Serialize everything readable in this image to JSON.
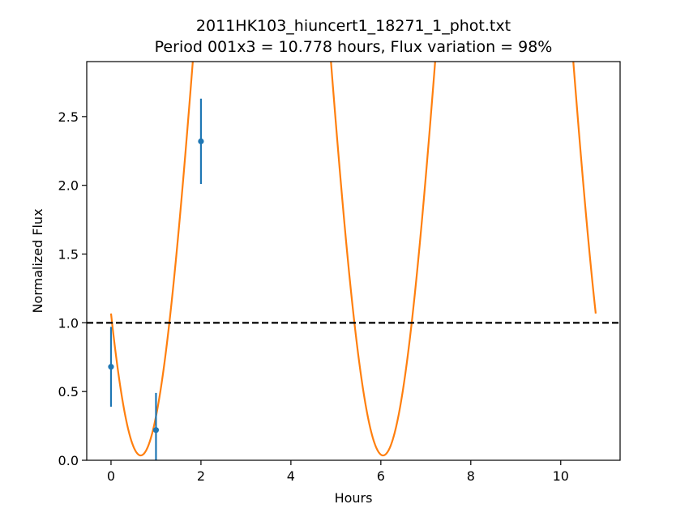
{
  "chart_data": {
    "type": "line",
    "title": "2011HK103_hiuncert1_18271_1_phot.txt",
    "subtitle": "Period 001x3 = 10.778 hours, Flux variation = 98%",
    "xlabel": "Hours",
    "ylabel": "Normalized Flux",
    "xlim": [
      -0.54,
      11.32
    ],
    "ylim": [
      0.0,
      2.9
    ],
    "xticks": [
      0,
      2,
      4,
      6,
      8,
      10
    ],
    "yticks": [
      0.0,
      0.5,
      1.0,
      1.5,
      2.0,
      2.5
    ],
    "xtick_labels": [
      "0",
      "2",
      "4",
      "6",
      "8",
      "10"
    ],
    "ytick_labels": [
      "0.0",
      "0.5",
      "1.0",
      "1.5",
      "2.0",
      "2.5"
    ],
    "grid": false,
    "reference_line": {
      "y": 1.0,
      "style": "dashed",
      "color": "#000000"
    },
    "observations": {
      "color": "#1f77b4",
      "points": [
        {
          "x": 0.0,
          "y": 0.68,
          "err": 0.29
        },
        {
          "x": 1.0,
          "y": 0.22,
          "err": 0.27
        },
        {
          "x": 2.0,
          "y": 2.32,
          "err": 0.31
        }
      ]
    },
    "model_fit": {
      "color": "#ff7f0e",
      "x_range": [
        0.0,
        10.778
      ],
      "period_hours": 5.389,
      "min_x": 0.66,
      "mean": 3.7,
      "amplitude": 3.665
    }
  }
}
